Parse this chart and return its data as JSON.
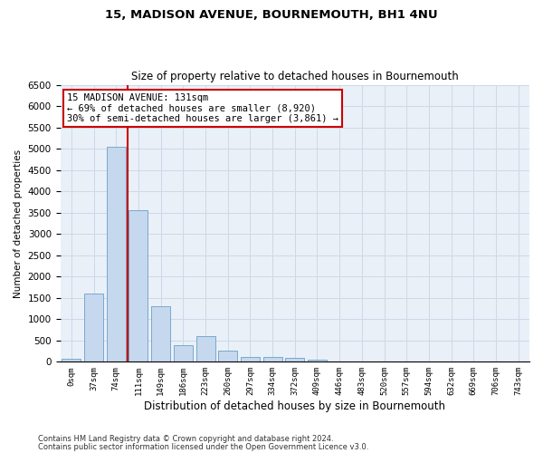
{
  "title": "15, MADISON AVENUE, BOURNEMOUTH, BH1 4NU",
  "subtitle": "Size of property relative to detached houses in Bournemouth",
  "xlabel": "Distribution of detached houses by size in Bournemouth",
  "ylabel": "Number of detached properties",
  "footer_line1": "Contains HM Land Registry data © Crown copyright and database right 2024.",
  "footer_line2": "Contains public sector information licensed under the Open Government Licence v3.0.",
  "bar_labels": [
    "0sqm",
    "37sqm",
    "74sqm",
    "111sqm",
    "149sqm",
    "186sqm",
    "223sqm",
    "260sqm",
    "297sqm",
    "334sqm",
    "372sqm",
    "409sqm",
    "446sqm",
    "483sqm",
    "520sqm",
    "557sqm",
    "594sqm",
    "632sqm",
    "669sqm",
    "706sqm",
    "743sqm"
  ],
  "bar_values": [
    70,
    1600,
    5050,
    3550,
    1300,
    400,
    600,
    260,
    120,
    110,
    90,
    40,
    5,
    2,
    1,
    1,
    0,
    0,
    0,
    0,
    0
  ],
  "bar_color": "#c5d8ee",
  "bar_edge_color": "#6a9fc8",
  "vline_color": "#cc0000",
  "vline_pos": 2.5,
  "ylim": [
    0,
    6500
  ],
  "yticks": [
    0,
    500,
    1000,
    1500,
    2000,
    2500,
    3000,
    3500,
    4000,
    4500,
    5000,
    5500,
    6000,
    6500
  ],
  "annotation_title": "15 MADISON AVENUE: 131sqm",
  "annotation_line1": "← 69% of detached houses are smaller (8,920)",
  "annotation_line2": "30% of semi-detached houses are larger (3,861) →",
  "annotation_box_color": "#cc0000",
  "grid_color": "#ccd9e8",
  "bg_color": "#eaf0f8"
}
